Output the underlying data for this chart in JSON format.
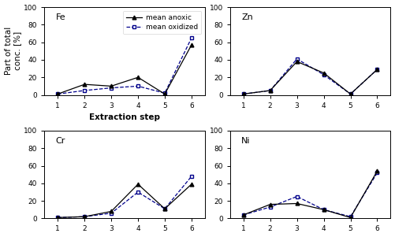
{
  "subplots": [
    {
      "label": "Fe",
      "anoxic": [
        1,
        12,
        10,
        20,
        1,
        57
      ],
      "oxidized": [
        1,
        5,
        8,
        10,
        2,
        65
      ],
      "show_legend": true,
      "show_xlabel": true,
      "show_ylabel": true
    },
    {
      "label": "Zn",
      "anoxic": [
        1,
        5,
        38,
        25,
        1,
        29
      ],
      "oxidized": [
        1,
        5,
        41,
        23,
        1,
        29
      ],
      "show_legend": false,
      "show_xlabel": false,
      "show_ylabel": false
    },
    {
      "label": "Cr",
      "anoxic": [
        1,
        2,
        8,
        39,
        11,
        39
      ],
      "oxidized": [
        1,
        2,
        6,
        30,
        11,
        48
      ],
      "show_legend": false,
      "show_xlabel": false,
      "show_ylabel": false
    },
    {
      "label": "Ni",
      "anoxic": [
        4,
        16,
        17,
        10,
        1,
        54
      ],
      "oxidized": [
        4,
        13,
        25,
        10,
        2,
        52
      ],
      "show_legend": false,
      "show_xlabel": false,
      "show_ylabel": false
    }
  ],
  "x": [
    1,
    2,
    3,
    4,
    5,
    6
  ],
  "ylim": [
    0,
    100
  ],
  "yticks": [
    0,
    20,
    40,
    60,
    80,
    100
  ],
  "xticks": [
    1,
    2,
    3,
    4,
    5,
    6
  ],
  "anoxic_color": "#000000",
  "oxidized_color": "#00008B",
  "xlabel": "Extraction step",
  "ylabel": "Part of total\nconc. [%]",
  "legend_anoxic": "mean anoxic",
  "legend_oxidized": "mean oxidized",
  "label_fontsize": 7.5,
  "tick_fontsize": 6.5,
  "element_fontsize": 8,
  "legend_fontsize": 6.5,
  "figsize": [
    5.01,
    3.01
  ],
  "dpi": 100
}
